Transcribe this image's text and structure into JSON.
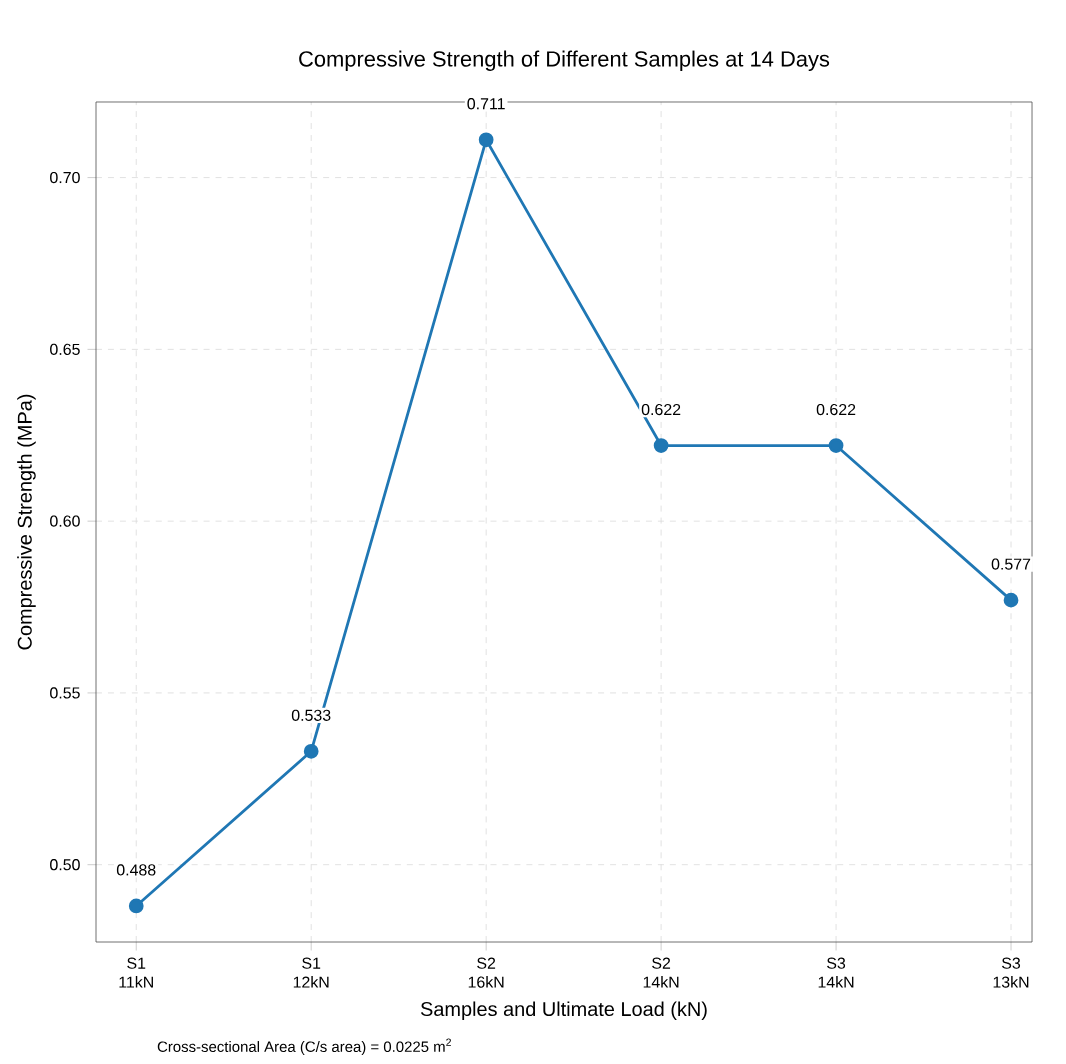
{
  "chart_data": {
    "type": "line",
    "title": "Compressive Strength of Different Samples at 14 Days",
    "xlabel": "Samples and Ultimate Load (kN)",
    "ylabel": "Compressive Strength (MPa)",
    "categories": [
      "S1 11kN",
      "S1 12kN",
      "S2 16kN",
      "S2 14kN",
      "S3 14kN",
      "S3 13kN"
    ],
    "series": [
      {
        "color": "#1f77b4",
        "values": [
          0.488,
          0.533,
          0.711,
          0.622,
          0.622,
          0.577
        ]
      }
    ],
    "ylim": [
      0.4775,
      0.722
    ],
    "yticks": [
      {
        "value": 0.5,
        "label": "0.50"
      },
      {
        "value": 0.55,
        "label": "0.55"
      },
      {
        "value": 0.6,
        "label": "0.60"
      },
      {
        "value": 0.65,
        "label": "0.65"
      },
      {
        "value": 0.7,
        "label": "0.70"
      }
    ],
    "grid": true,
    "marker": "circle",
    "line_style": "solid",
    "data_labels": true,
    "annotations": [
      "Cross-sectional Area (C/s area) = 0.0225 m$^{2}$"
    ]
  }
}
